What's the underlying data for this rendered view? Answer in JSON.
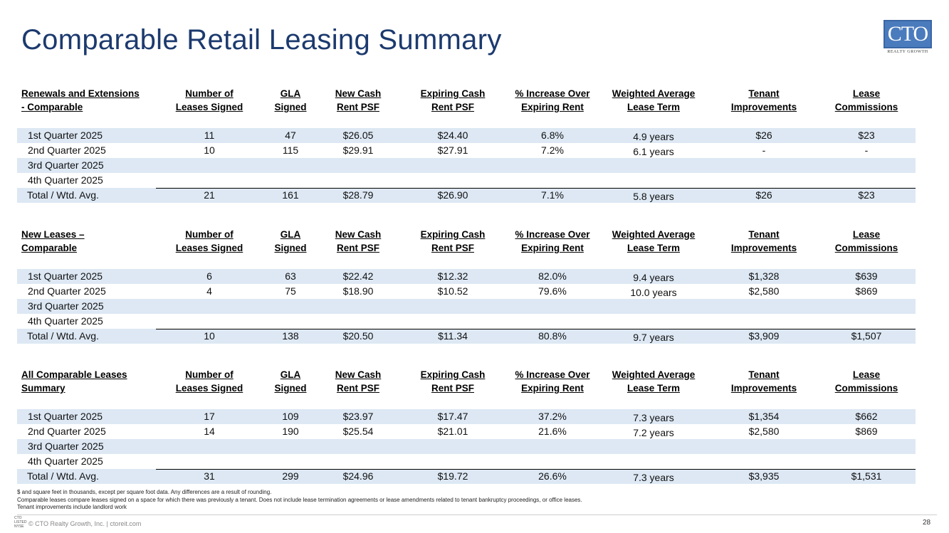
{
  "page": {
    "title": "Comparable Retail Leasing Summary",
    "logo_text": "CTO",
    "logo_sub": "REALTY GROWTH",
    "page_number": "28",
    "footer": "© CTO Realty Growth, Inc. | ctoreit.com",
    "footer_logo_lines": [
      "CTO",
      "LISTED",
      "NYSE"
    ]
  },
  "columns": [
    [
      "Number of",
      "Leases Signed"
    ],
    [
      "GLA",
      "Signed"
    ],
    [
      "New Cash",
      "Rent PSF"
    ],
    [
      "Expiring Cash",
      "Rent PSF"
    ],
    [
      "% Increase Over",
      "Expiring Rent"
    ],
    [
      "Weighted Average",
      "Lease Term"
    ],
    [
      "Tenant",
      "Improvements"
    ],
    [
      "Lease",
      "Commissions"
    ]
  ],
  "sections": [
    {
      "label": [
        "Renewals and Extensions",
        "- Comparable"
      ],
      "rows": [
        {
          "label": "1st Quarter 2025",
          "values": [
            "11",
            "47",
            "$26.05",
            "$24.40",
            "6.8%",
            "4.9 years",
            "$26",
            "$23"
          ]
        },
        {
          "label": "2nd Quarter 2025",
          "values": [
            "10",
            "115",
            "$29.91",
            "$27.91",
            "7.2%",
            "6.1 years",
            "-",
            "-"
          ]
        },
        {
          "label": "3rd Quarter 2025",
          "values": [
            "",
            "",
            "",
            "",
            "",
            "",
            "",
            ""
          ]
        },
        {
          "label": "4th Quarter 2025",
          "values": [
            "",
            "",
            "",
            "",
            "",
            "",
            "",
            ""
          ]
        }
      ],
      "total": {
        "label": "Total / Wtd. Avg.",
        "values": [
          "21",
          "161",
          "$28.79",
          "$26.90",
          "7.1%",
          "5.8 years",
          "$26",
          "$23"
        ]
      }
    },
    {
      "label": [
        "New Leases –",
        "Comparable"
      ],
      "rows": [
        {
          "label": "1st Quarter 2025",
          "values": [
            "6",
            "63",
            "$22.42",
            "$12.32",
            "82.0%",
            "9.4 years",
            "$1,328",
            "$639"
          ]
        },
        {
          "label": "2nd Quarter 2025",
          "values": [
            "4",
            "75",
            "$18.90",
            "$10.52",
            "79.6%",
            "10.0 years",
            "$2,580",
            "$869"
          ]
        },
        {
          "label": "3rd Quarter 2025",
          "values": [
            "",
            "",
            "",
            "",
            "",
            "",
            "",
            ""
          ]
        },
        {
          "label": "4th Quarter 2025",
          "values": [
            "",
            "",
            "",
            "",
            "",
            "",
            "",
            ""
          ]
        }
      ],
      "total": {
        "label": "Total / Wtd. Avg.",
        "values": [
          "10",
          "138",
          "$20.50",
          "$11.34",
          "80.8%",
          "9.7 years",
          "$3,909",
          "$1,507"
        ]
      }
    },
    {
      "label": [
        "All Comparable Leases",
        "Summary"
      ],
      "rows": [
        {
          "label": "1st Quarter 2025",
          "values": [
            "17",
            "109",
            "$23.97",
            "$17.47",
            "37.2%",
            "7.3 years",
            "$1,354",
            "$662"
          ]
        },
        {
          "label": "2nd Quarter 2025",
          "values": [
            "14",
            "190",
            "$25.54",
            "$21.01",
            "21.6%",
            "7.2 years",
            "$2,580",
            "$869"
          ]
        },
        {
          "label": "3rd Quarter 2025",
          "values": [
            "",
            "",
            "",
            "",
            "",
            "",
            "",
            ""
          ]
        },
        {
          "label": "4th Quarter 2025",
          "values": [
            "",
            "",
            "",
            "",
            "",
            "",
            "",
            ""
          ]
        }
      ],
      "total": {
        "label": "Total / Wtd. Avg.",
        "values": [
          "31",
          "299",
          "$24.96",
          "$19.72",
          "26.6%",
          "7.3 years",
          "$3,935",
          "$1,531"
        ]
      }
    }
  ],
  "notes": [
    "$ and square feet in thousands, except per square foot data. Any differences are a result of rounding.",
    "Comparable leases compare leases signed on a space for which there was previously a tenant. Does not include lease termination agreements or lease amendments related to tenant bankruptcy proceedings, or office leases.",
    "Tenant improvements include landlord work"
  ]
}
